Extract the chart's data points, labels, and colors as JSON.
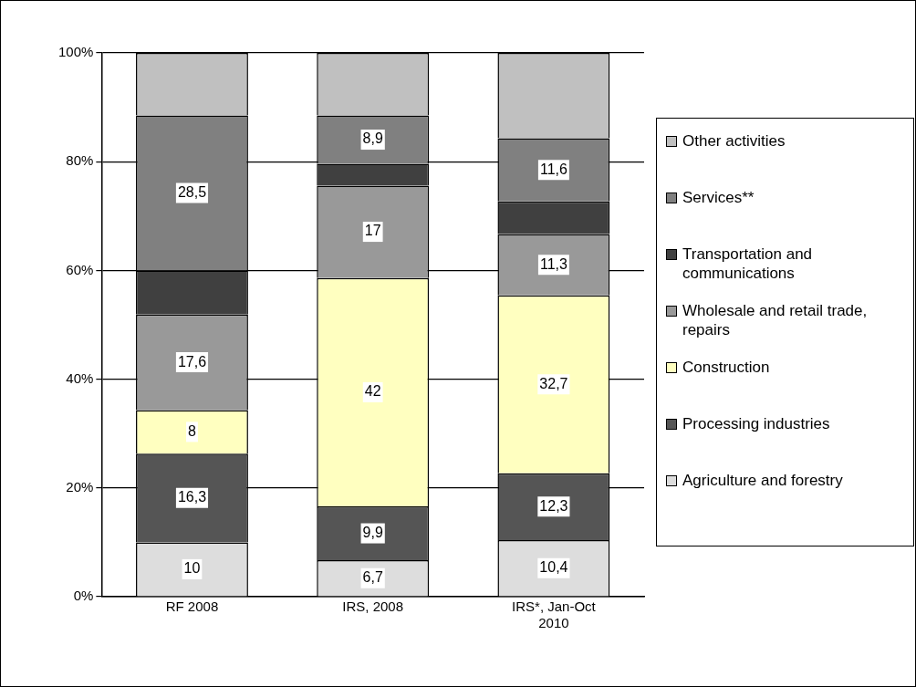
{
  "chart_data": {
    "type": "bar",
    "stacked": true,
    "categories": [
      "RF 2008",
      "IRS, 2008",
      "IRS*, Jan-Oct 2010"
    ],
    "ylim": [
      0,
      100
    ],
    "yticks": [
      {
        "value": 0,
        "label": "0%"
      },
      {
        "value": 20,
        "label": "20%"
      },
      {
        "value": 40,
        "label": "40%"
      },
      {
        "value": 60,
        "label": "60%"
      },
      {
        "value": 80,
        "label": "80%"
      },
      {
        "value": 100,
        "label": "100%"
      }
    ],
    "grid": "y",
    "legend": "right",
    "series": [
      {
        "name": "Agriculture and forestry",
        "color": "#dddddd",
        "values": [
          10,
          6.7,
          10.4
        ],
        "value_labels": [
          "10",
          "6,7",
          "10,4"
        ]
      },
      {
        "name": "Processing industries",
        "color": "#555555",
        "values": [
          16.3,
          9.9,
          12.3
        ],
        "value_labels": [
          "16,3",
          "9,9",
          "12,3"
        ]
      },
      {
        "name": "Construction",
        "color": "#ffffc0",
        "values": [
          8,
          42,
          32.7
        ],
        "value_labels": [
          "8",
          "42",
          "32,7"
        ]
      },
      {
        "name": "Wholesale and retail trade, repairs",
        "color": "#999999",
        "values": [
          17.6,
          17,
          11.3
        ],
        "value_labels": [
          "17,6",
          "17",
          "11,3"
        ]
      },
      {
        "name": "Transportation and communications",
        "color": "#404040",
        "values": [
          8.1,
          4.0,
          6.0
        ]
      },
      {
        "name": "Services**",
        "color": "#808080",
        "values": [
          28.5,
          8.9,
          11.6
        ],
        "value_labels": [
          "28,5",
          "8,9",
          "11,6"
        ]
      },
      {
        "name": "Other activities",
        "color": "#c0c0c0",
        "values": [
          11.5,
          11.5,
          15.7
        ]
      }
    ]
  }
}
